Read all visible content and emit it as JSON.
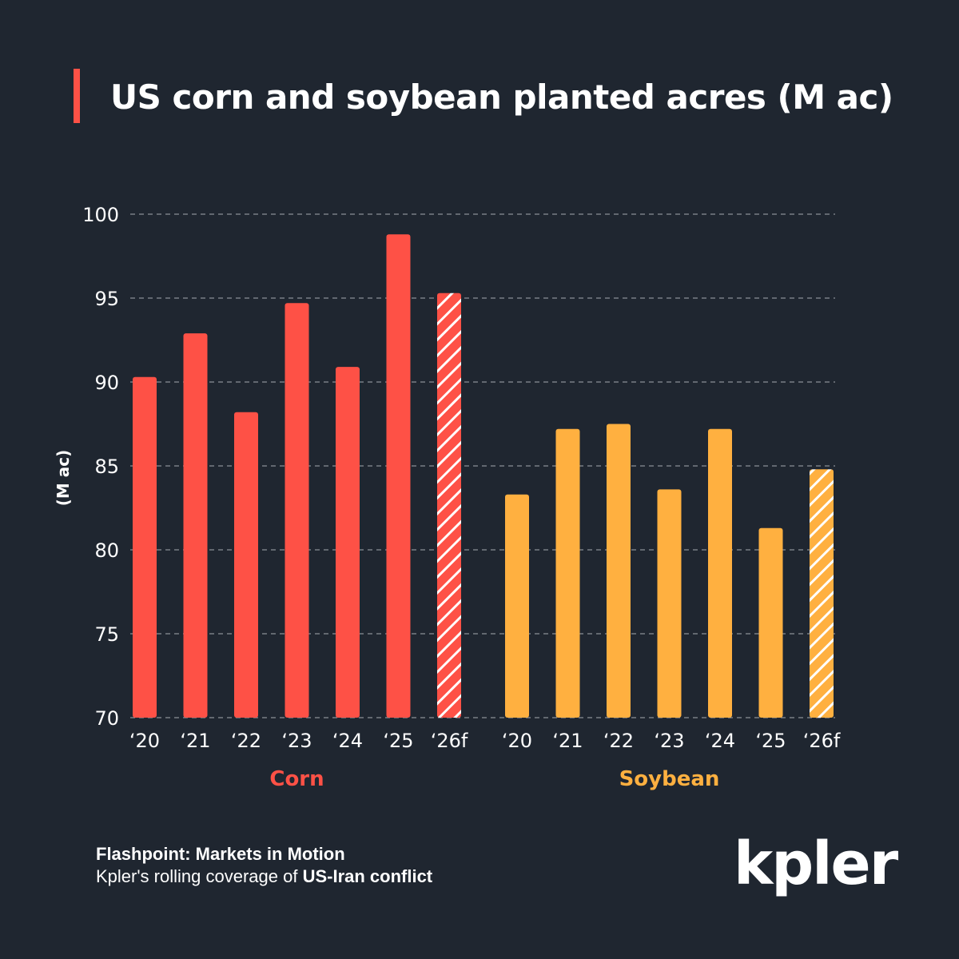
{
  "title": "US corn and soybean planted acres (M ac)",
  "colors": {
    "background": "#1f2630",
    "accent": "#fe5146",
    "corn": "#fe5146",
    "soybean": "#ffb040",
    "grid": "#8a8f96",
    "text": "#ffffff"
  },
  "chart_data": {
    "type": "bar",
    "title": "US corn and soybean planted acres (M ac)",
    "ylabel": "(M ac)",
    "xlabel": "",
    "ylim": [
      70,
      100
    ],
    "yticks": [
      70,
      75,
      80,
      85,
      90,
      95,
      100
    ],
    "grid": true,
    "groups": [
      {
        "name": "Corn",
        "categories": [
          "‘20",
          "‘21",
          "‘22",
          "‘23",
          "‘24",
          "‘25",
          "‘26f"
        ],
        "values": [
          90.3,
          92.9,
          88.2,
          94.7,
          90.9,
          98.8,
          95.3
        ],
        "forecast": [
          false,
          false,
          false,
          false,
          false,
          false,
          true
        ]
      },
      {
        "name": "Soybean",
        "categories": [
          "‘20",
          "‘21",
          "‘22",
          "‘23",
          "‘24",
          "‘25",
          "‘26f"
        ],
        "values": [
          83.3,
          87.2,
          87.5,
          83.6,
          87.2,
          81.3,
          84.8
        ],
        "forecast": [
          false,
          false,
          false,
          false,
          false,
          false,
          true
        ]
      }
    ]
  },
  "footer": {
    "line1": "Flashpoint: Markets in Motion",
    "line2_prefix": "Kpler's rolling coverage of ",
    "line2_bold": "US-Iran conflict"
  },
  "logo": "kpler"
}
